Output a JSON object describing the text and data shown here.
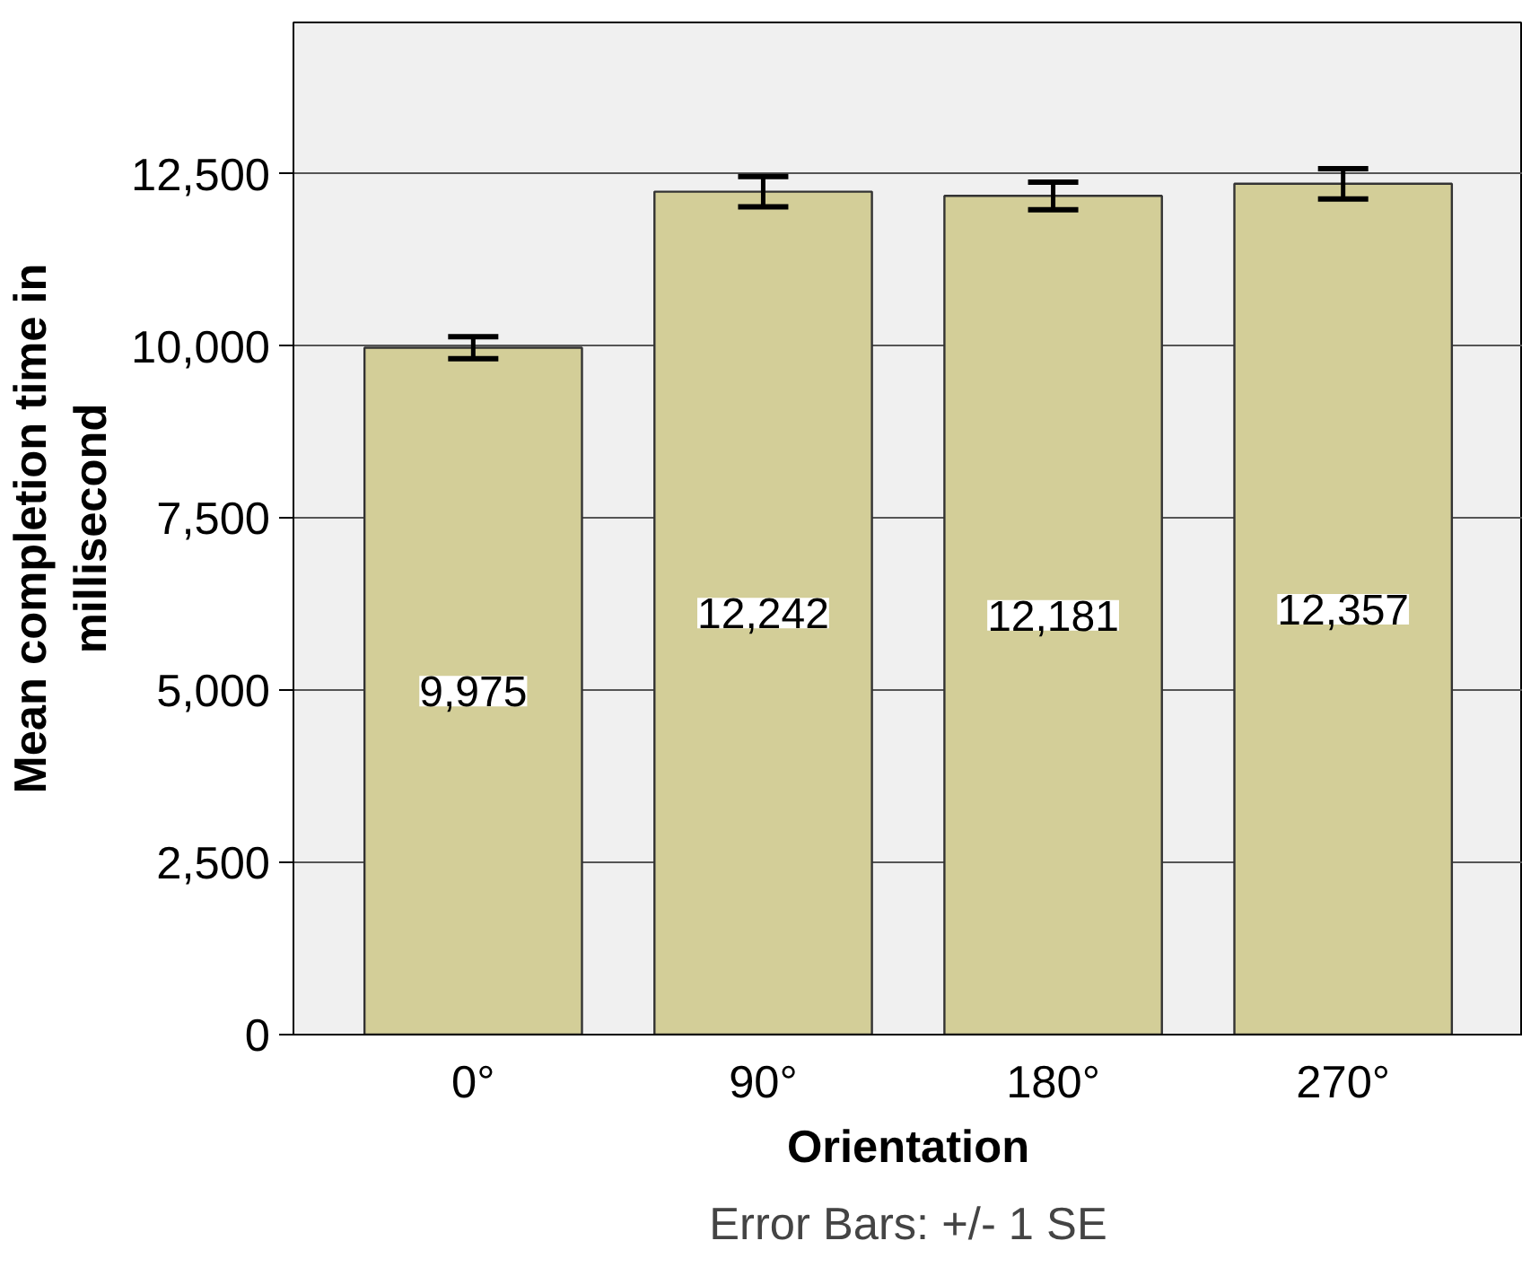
{
  "chart_data": {
    "type": "bar",
    "xlabel": "Orientation",
    "ylabel": "Mean completion time in millisecond",
    "categories": [
      "0°",
      "90°",
      "180°",
      "270°"
    ],
    "values": [
      9975,
      12242,
      12181,
      12357
    ],
    "errors": [
      160,
      220,
      200,
      220
    ],
    "color": "#d3ce98",
    "value_labels": [
      "9,975",
      "12,242",
      "12,181",
      "12,357"
    ],
    "ylim": [
      0,
      14700
    ],
    "yticks": [
      {
        "value": 0,
        "label": "0"
      },
      {
        "value": 2500,
        "label": "2,500"
      },
      {
        "value": 5000,
        "label": "5,000"
      },
      {
        "value": 7500,
        "label": "7,500"
      },
      {
        "value": 10000,
        "label": "10,000"
      },
      {
        "value": 12500,
        "label": "12,500"
      }
    ],
    "grid": "y",
    "annotations": [
      "Error Bars: +/- 1 SE"
    ]
  }
}
